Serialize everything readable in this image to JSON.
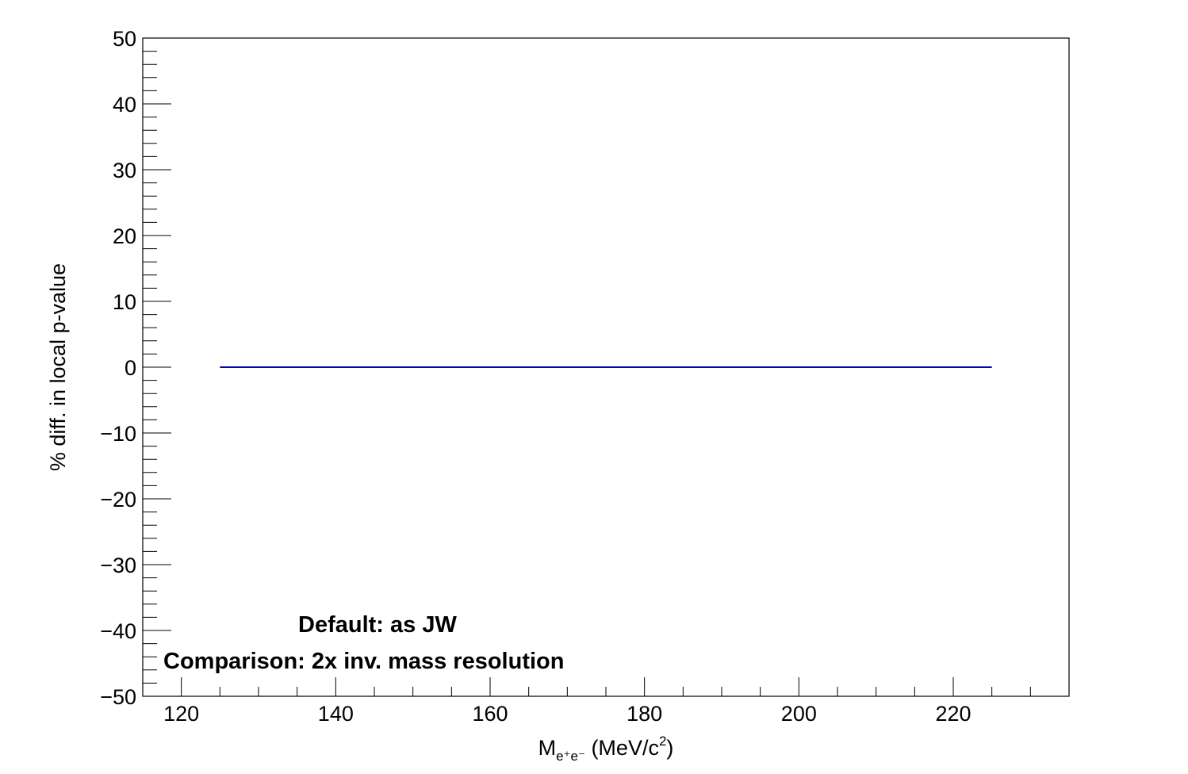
{
  "chart_data": {
    "type": "line",
    "xlabel": {
      "main": "M",
      "sub": "e⁺e⁻",
      "unit": " (MeV/c",
      "sup": "2",
      "close": ")"
    },
    "ylabel": "% diff. in local p-value",
    "xlim": [
      115,
      235
    ],
    "ylim": [
      -50,
      50
    ],
    "x_ticks": [
      120,
      140,
      160,
      180,
      200,
      220
    ],
    "x_tick_labels": [
      "120",
      "140",
      "160",
      "180",
      "200",
      "220"
    ],
    "y_ticks": [
      -50,
      -40,
      -30,
      -20,
      -10,
      0,
      10,
      20,
      30,
      40,
      50
    ],
    "y_tick_labels": [
      "−50",
      "−40",
      "−30",
      "−20",
      "−10",
      "0",
      "10",
      "20",
      "30",
      "40",
      "50"
    ],
    "series": [
      {
        "color": "#0000cc",
        "x": [
          125,
          225
        ],
        "y": [
          0,
          0
        ]
      }
    ],
    "annotations": [
      {
        "text": "Default: as JW"
      },
      {
        "text": "Comparison: 2x inv. mass resolution"
      }
    ],
    "grid": false,
    "colors": {
      "frame": "#000000",
      "line": "#0000cc"
    }
  }
}
